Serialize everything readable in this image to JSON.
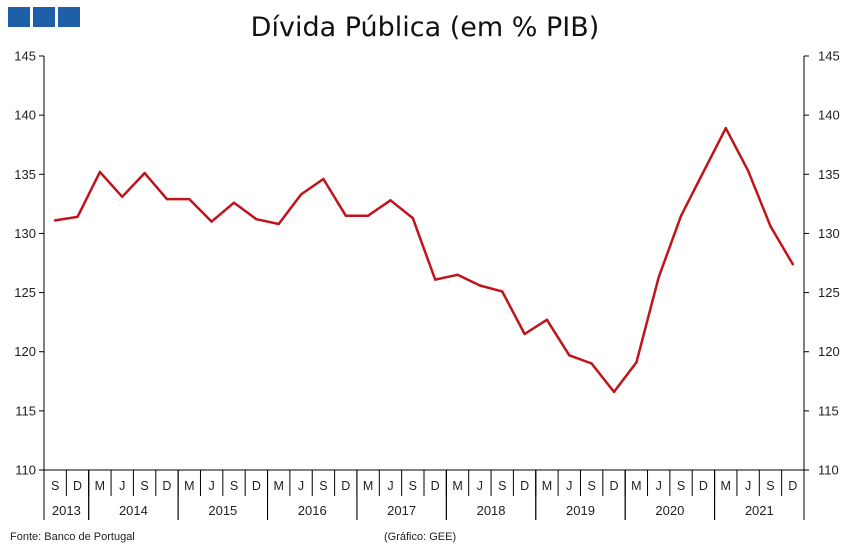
{
  "header": {
    "logo_color": "#1f5fa8",
    "title": "Dívida Pública (em % PIB)"
  },
  "footer": {
    "source": "Fonte: Banco de Portugal",
    "credit": "(Gráfico: GEE)"
  },
  "chart_data": {
    "type": "line",
    "title": "Dívida Pública (em % PIB)",
    "ylim": [
      110,
      145
    ],
    "yticks": [
      110,
      115,
      120,
      125,
      130,
      135,
      140,
      145
    ],
    "y_axis_both_sides": true,
    "grid": false,
    "legend": "none",
    "categories": [
      "S",
      "D",
      "M",
      "J",
      "S",
      "D",
      "M",
      "J",
      "S",
      "D",
      "M",
      "J",
      "S",
      "D",
      "M",
      "J",
      "S",
      "D",
      "M",
      "J",
      "S",
      "D",
      "M",
      "J",
      "S",
      "D",
      "M",
      "J",
      "S",
      "D",
      "M",
      "J",
      "S",
      "D"
    ],
    "years": [
      {
        "label": "2013",
        "start": 0,
        "count": 2
      },
      {
        "label": "2014",
        "start": 2,
        "count": 4
      },
      {
        "label": "2015",
        "start": 6,
        "count": 4
      },
      {
        "label": "2016",
        "start": 10,
        "count": 4
      },
      {
        "label": "2017",
        "start": 14,
        "count": 4
      },
      {
        "label": "2018",
        "start": 18,
        "count": 4
      },
      {
        "label": "2019",
        "start": 22,
        "count": 4
      },
      {
        "label": "2020",
        "start": 26,
        "count": 4
      },
      {
        "label": "2021",
        "start": 30,
        "count": 4
      }
    ],
    "series": [
      {
        "color": "#c0141c",
        "values": [
          131.1,
          131.4,
          135.2,
          133.1,
          135.1,
          132.9,
          132.9,
          131.0,
          132.6,
          131.2,
          130.8,
          133.3,
          134.6,
          131.5,
          131.5,
          132.8,
          131.3,
          126.1,
          126.5,
          125.6,
          125.1,
          121.5,
          122.7,
          119.7,
          119.0,
          116.6,
          119.1,
          126.3,
          131.5,
          135.2,
          138.9,
          135.3,
          130.6,
          127.4
        ]
      }
    ]
  }
}
